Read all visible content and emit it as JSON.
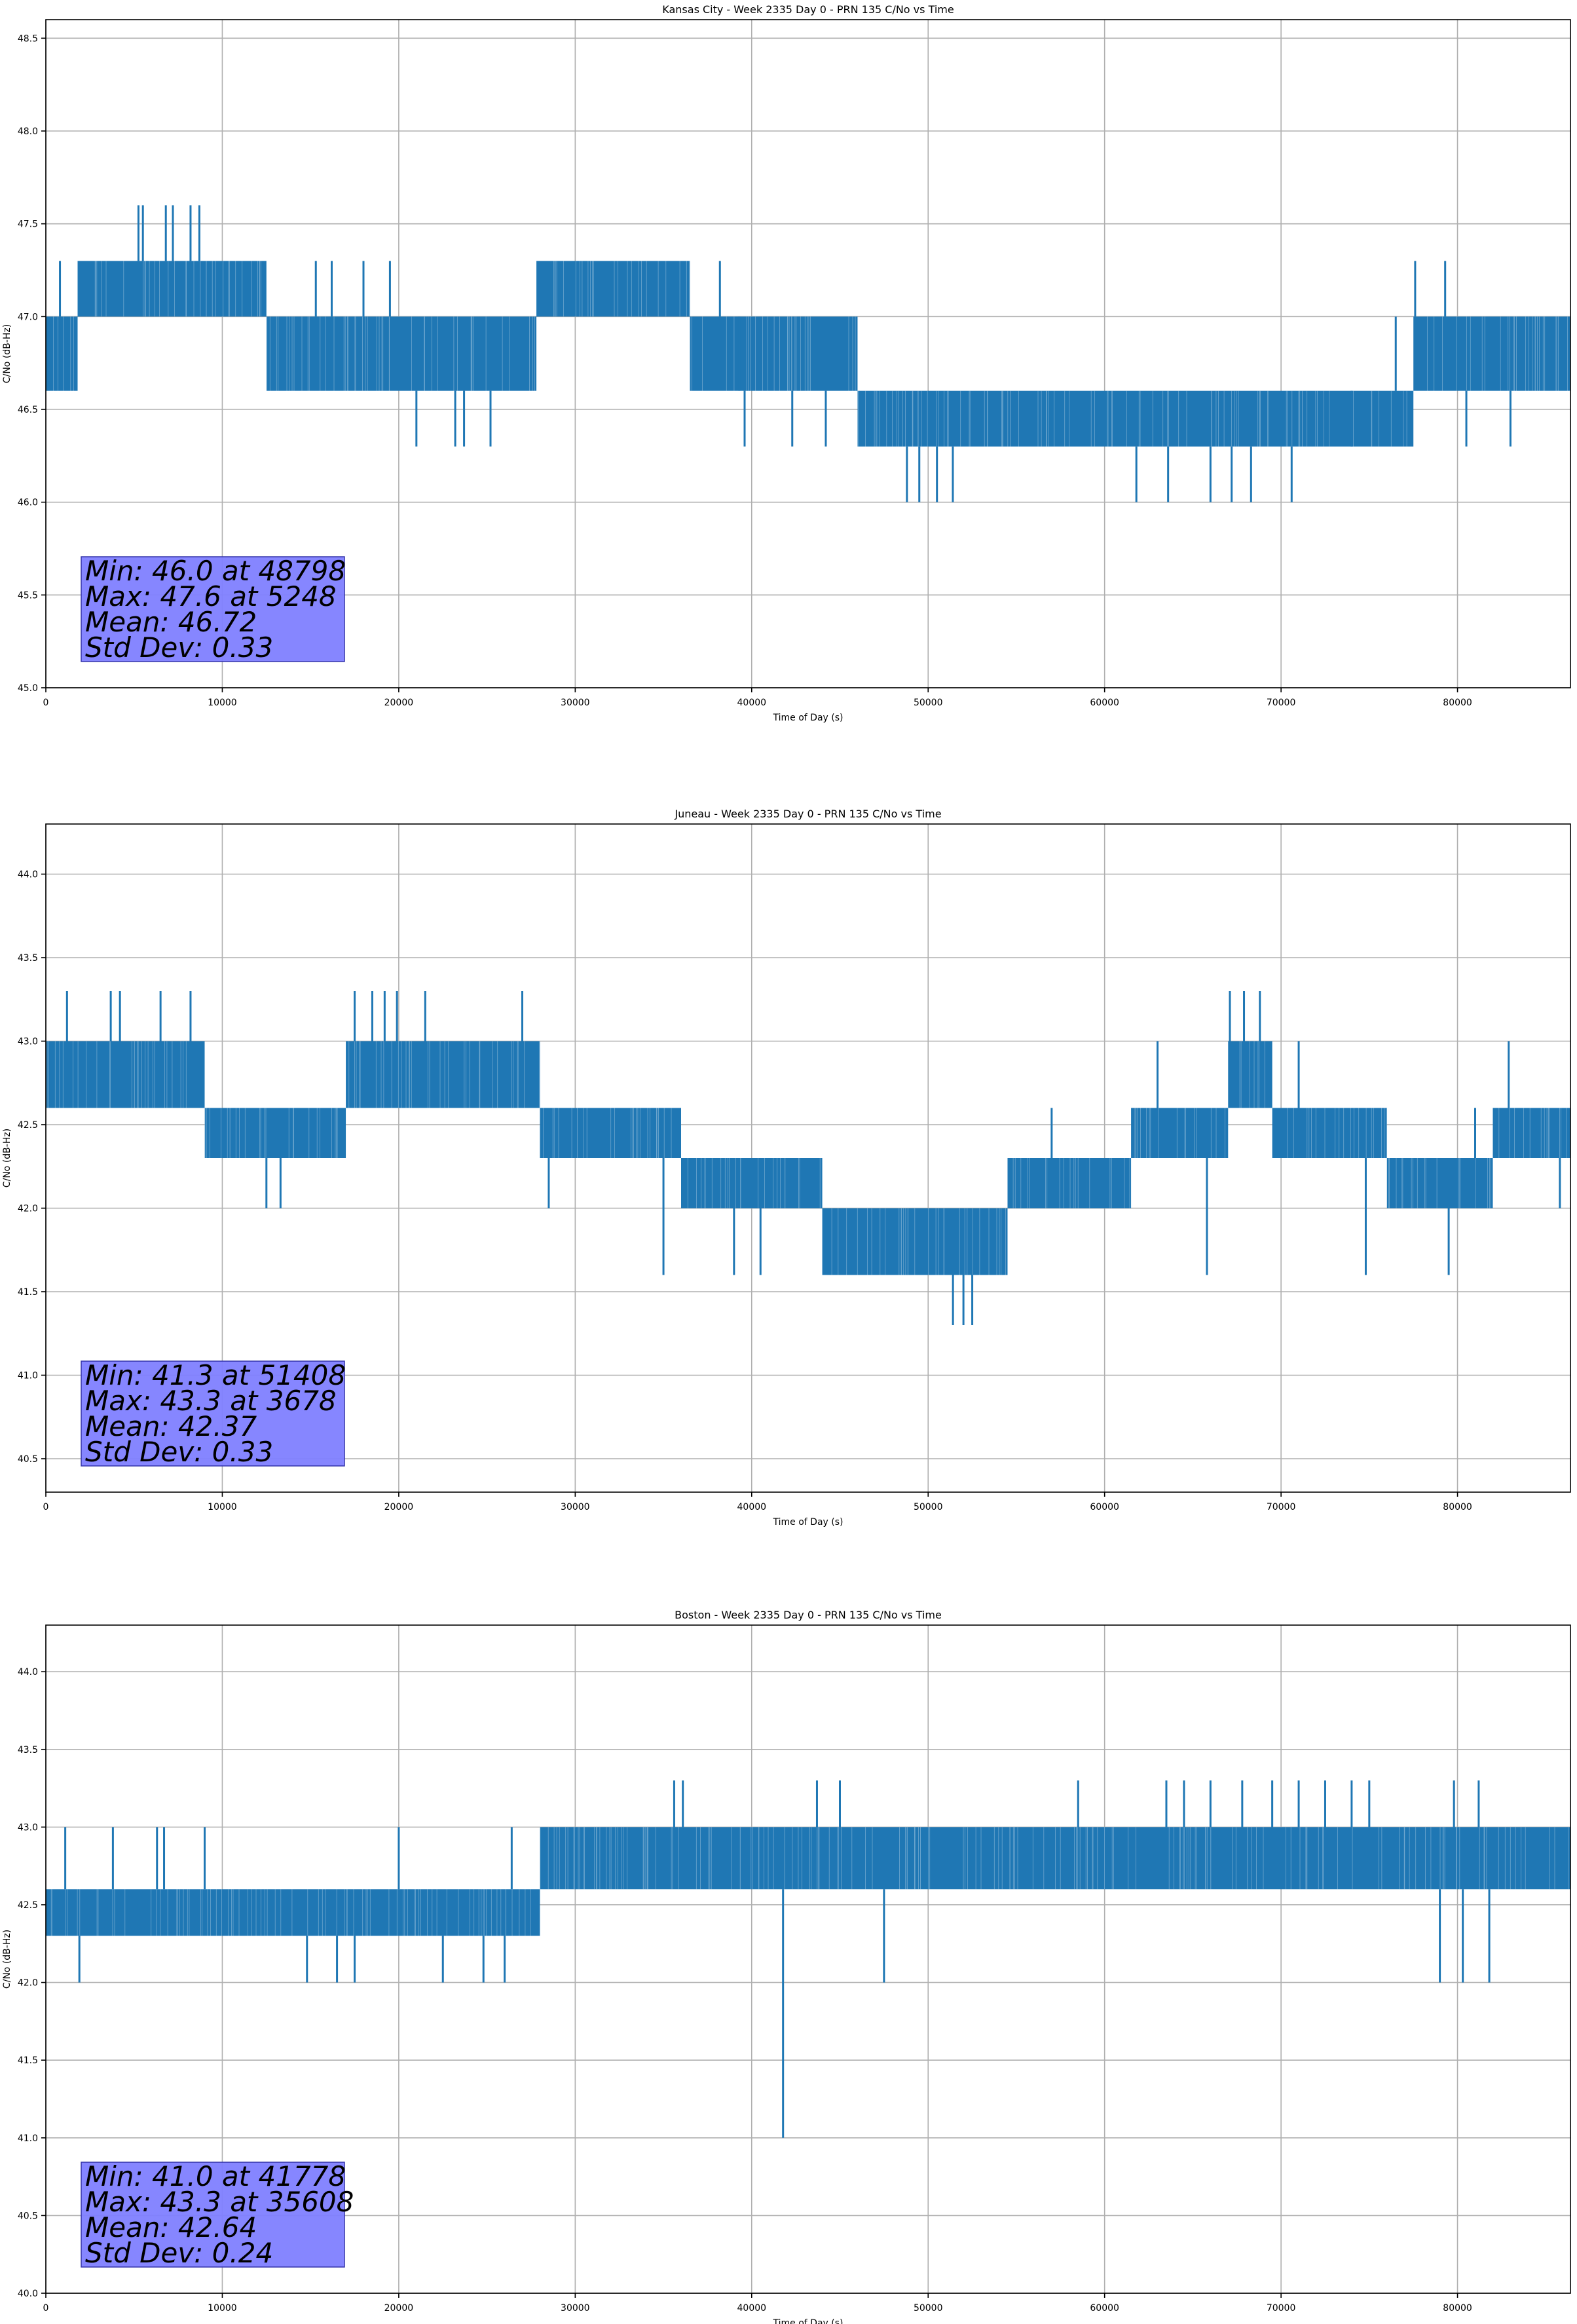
{
  "chart_data": [
    {
      "type": "line",
      "title": "Kansas City - Week 2335 Day 0 - PRN 135 C/No vs Time",
      "xlabel": "Time of Day (s)",
      "ylabel": "C/No (dB-Hz)",
      "xlim": [
        0,
        86400
      ],
      "ylim": [
        45.0,
        48.6
      ],
      "xticks": [
        0,
        10000,
        20000,
        30000,
        40000,
        50000,
        60000,
        70000,
        80000
      ],
      "yticks": [
        45.0,
        45.5,
        46.0,
        46.5,
        47.0,
        47.5,
        48.0,
        48.5
      ],
      "grid": true,
      "color": "#1f77b4",
      "series": [
        {
          "segments": [
            {
              "x0": 0,
              "x1": 1800,
              "lo": 46.6,
              "hi": 47.0
            },
            {
              "x0": 1800,
              "x1": 12500,
              "lo": 47.0,
              "hi": 47.3
            },
            {
              "x0": 12500,
              "x1": 27800,
              "lo": 46.6,
              "hi": 47.0
            },
            {
              "x0": 27800,
              "x1": 36500,
              "lo": 47.0,
              "hi": 47.3
            },
            {
              "x0": 36500,
              "x1": 46000,
              "lo": 46.6,
              "hi": 47.0
            },
            {
              "x0": 46000,
              "x1": 77500,
              "lo": 46.3,
              "hi": 46.6
            },
            {
              "x0": 77500,
              "x1": 86400,
              "lo": 46.6,
              "hi": 47.0
            }
          ],
          "spikes": [
            {
              "x": 800,
              "y": 47.3
            },
            {
              "x": 2500,
              "y": 47.3
            },
            {
              "x": 5248,
              "y": 47.6
            },
            {
              "x": 5500,
              "y": 47.6
            },
            {
              "x": 6800,
              "y": 47.6
            },
            {
              "x": 7200,
              "y": 47.6
            },
            {
              "x": 8200,
              "y": 47.6
            },
            {
              "x": 8700,
              "y": 47.6
            },
            {
              "x": 15300,
              "y": 47.3
            },
            {
              "x": 16200,
              "y": 47.3
            },
            {
              "x": 18000,
              "y": 47.3
            },
            {
              "x": 19500,
              "y": 47.3
            },
            {
              "x": 21000,
              "y": 46.3
            },
            {
              "x": 23200,
              "y": 46.3
            },
            {
              "x": 23700,
              "y": 46.3
            },
            {
              "x": 25200,
              "y": 46.3
            },
            {
              "x": 38200,
              "y": 47.3
            },
            {
              "x": 39300,
              "y": 46.6
            },
            {
              "x": 39600,
              "y": 46.3
            },
            {
              "x": 42300,
              "y": 46.3
            },
            {
              "x": 44200,
              "y": 46.3
            },
            {
              "x": 48798,
              "y": 46.0
            },
            {
              "x": 49500,
              "y": 46.0
            },
            {
              "x": 50500,
              "y": 46.0
            },
            {
              "x": 51400,
              "y": 46.0
            },
            {
              "x": 53000,
              "y": 46.6
            },
            {
              "x": 57700,
              "y": 46.6
            },
            {
              "x": 61800,
              "y": 46.0
            },
            {
              "x": 63600,
              "y": 46.0
            },
            {
              "x": 66000,
              "y": 46.0
            },
            {
              "x": 67200,
              "y": 46.0
            },
            {
              "x": 68300,
              "y": 46.0
            },
            {
              "x": 70600,
              "y": 46.0
            },
            {
              "x": 72000,
              "y": 46.6
            },
            {
              "x": 74000,
              "y": 46.3
            },
            {
              "x": 76500,
              "y": 47.0
            },
            {
              "x": 77600,
              "y": 47.3
            },
            {
              "x": 79300,
              "y": 47.3
            },
            {
              "x": 80500,
              "y": 46.3
            },
            {
              "x": 83000,
              "y": 46.3
            }
          ]
        }
      ],
      "annotation": [
        "Min: 46.0 at 48798",
        "Max: 47.6 at 5248",
        "Mean: 46.72",
        "Std Dev: 0.33"
      ]
    },
    {
      "type": "line",
      "title": "Juneau - Week 2335 Day 0 - PRN 135 C/No vs Time",
      "xlabel": "Time of Day (s)",
      "ylabel": "C/No (dB-Hz)",
      "xlim": [
        0,
        86400
      ],
      "ylim": [
        40.3,
        44.3
      ],
      "xticks": [
        0,
        10000,
        20000,
        30000,
        40000,
        50000,
        60000,
        70000,
        80000
      ],
      "yticks": [
        40.5,
        41.0,
        41.5,
        42.0,
        42.5,
        43.0,
        43.5,
        44.0
      ],
      "grid": true,
      "color": "#1f77b4",
      "series": [
        {
          "segments": [
            {
              "x0": 0,
              "x1": 9000,
              "lo": 42.6,
              "hi": 43.0
            },
            {
              "x0": 9000,
              "x1": 17000,
              "lo": 42.3,
              "hi": 42.6
            },
            {
              "x0": 17000,
              "x1": 28000,
              "lo": 42.6,
              "hi": 43.0
            },
            {
              "x0": 28000,
              "x1": 36000,
              "lo": 42.3,
              "hi": 42.6
            },
            {
              "x0": 36000,
              "x1": 44000,
              "lo": 42.0,
              "hi": 42.3
            },
            {
              "x0": 44000,
              "x1": 54500,
              "lo": 41.6,
              "hi": 42.0
            },
            {
              "x0": 54500,
              "x1": 61500,
              "lo": 42.0,
              "hi": 42.3
            },
            {
              "x0": 61500,
              "x1": 67000,
              "lo": 42.3,
              "hi": 42.6
            },
            {
              "x0": 67000,
              "x1": 69500,
              "lo": 42.6,
              "hi": 43.0
            },
            {
              "x0": 69500,
              "x1": 76000,
              "lo": 42.3,
              "hi": 42.6
            },
            {
              "x0": 76000,
              "x1": 82000,
              "lo": 42.0,
              "hi": 42.3
            },
            {
              "x0": 82000,
              "x1": 86400,
              "lo": 42.3,
              "hi": 42.6
            }
          ],
          "spikes": [
            {
              "x": 1200,
              "y": 43.3
            },
            {
              "x": 3678,
              "y": 43.3
            },
            {
              "x": 4200,
              "y": 43.3
            },
            {
              "x": 6500,
              "y": 43.3
            },
            {
              "x": 8200,
              "y": 43.3
            },
            {
              "x": 12500,
              "y": 42.0
            },
            {
              "x": 13300,
              "y": 42.0
            },
            {
              "x": 17500,
              "y": 43.3
            },
            {
              "x": 18500,
              "y": 43.3
            },
            {
              "x": 19200,
              "y": 43.3
            },
            {
              "x": 19900,
              "y": 43.3
            },
            {
              "x": 21500,
              "y": 43.3
            },
            {
              "x": 27000,
              "y": 43.3
            },
            {
              "x": 28500,
              "y": 42.0
            },
            {
              "x": 35000,
              "y": 41.6
            },
            {
              "x": 39000,
              "y": 41.6
            },
            {
              "x": 40500,
              "y": 41.6
            },
            {
              "x": 51408,
              "y": 41.3
            },
            {
              "x": 52000,
              "y": 41.3
            },
            {
              "x": 52500,
              "y": 41.3
            },
            {
              "x": 57000,
              "y": 42.6
            },
            {
              "x": 59000,
              "y": 42.0
            },
            {
              "x": 63000,
              "y": 43.0
            },
            {
              "x": 65800,
              "y": 41.6
            },
            {
              "x": 67100,
              "y": 43.3
            },
            {
              "x": 67900,
              "y": 43.3
            },
            {
              "x": 68800,
              "y": 43.3
            },
            {
              "x": 71000,
              "y": 43.0
            },
            {
              "x": 74800,
              "y": 41.6
            },
            {
              "x": 79500,
              "y": 41.6
            },
            {
              "x": 81000,
              "y": 42.6
            },
            {
              "x": 82900,
              "y": 43.0
            },
            {
              "x": 85800,
              "y": 42.0
            }
          ]
        }
      ],
      "annotation": [
        "Min: 41.3 at 51408",
        "Max: 43.3 at 3678",
        "Mean: 42.37",
        "Std Dev: 0.33"
      ]
    },
    {
      "type": "line",
      "title": "Boston - Week 2335 Day 0 - PRN 135 C/No vs Time",
      "xlabel": "Time of Day (s)",
      "ylabel": "C/No (dB-Hz)",
      "xlim": [
        0,
        86400
      ],
      "ylim": [
        40.0,
        44.3
      ],
      "xticks": [
        0,
        10000,
        20000,
        30000,
        40000,
        50000,
        60000,
        70000,
        80000
      ],
      "yticks": [
        40.0,
        40.5,
        41.0,
        41.5,
        42.0,
        42.5,
        43.0,
        43.5,
        44.0
      ],
      "grid": true,
      "color": "#1f77b4",
      "series": [
        {
          "segments": [
            {
              "x0": 0,
              "x1": 28000,
              "lo": 42.3,
              "hi": 42.6
            },
            {
              "x0": 28000,
              "x1": 86400,
              "lo": 42.6,
              "hi": 43.0
            }
          ],
          "spikes": [
            {
              "x": 1100,
              "y": 43.0
            },
            {
              "x": 1900,
              "y": 42.0
            },
            {
              "x": 3800,
              "y": 43.0
            },
            {
              "x": 6300,
              "y": 43.0
            },
            {
              "x": 6700,
              "y": 43.0
            },
            {
              "x": 9000,
              "y": 43.0
            },
            {
              "x": 14800,
              "y": 42.0
            },
            {
              "x": 16500,
              "y": 42.0
            },
            {
              "x": 17500,
              "y": 42.0
            },
            {
              "x": 20000,
              "y": 43.0
            },
            {
              "x": 22500,
              "y": 42.0
            },
            {
              "x": 24800,
              "y": 42.0
            },
            {
              "x": 26000,
              "y": 42.0
            },
            {
              "x": 26400,
              "y": 43.0
            },
            {
              "x": 35608,
              "y": 43.3
            },
            {
              "x": 36100,
              "y": 43.3
            },
            {
              "x": 41778,
              "y": 41.0
            },
            {
              "x": 43700,
              "y": 43.3
            },
            {
              "x": 45000,
              "y": 43.3
            },
            {
              "x": 47500,
              "y": 42.0
            },
            {
              "x": 58500,
              "y": 43.3
            },
            {
              "x": 63500,
              "y": 43.3
            },
            {
              "x": 64500,
              "y": 43.3
            },
            {
              "x": 66000,
              "y": 43.3
            },
            {
              "x": 67800,
              "y": 43.3
            },
            {
              "x": 69500,
              "y": 43.3
            },
            {
              "x": 71000,
              "y": 43.3
            },
            {
              "x": 72500,
              "y": 43.3
            },
            {
              "x": 74000,
              "y": 43.3
            },
            {
              "x": 75000,
              "y": 43.3
            },
            {
              "x": 79000,
              "y": 42.0
            },
            {
              "x": 79800,
              "y": 43.3
            },
            {
              "x": 80300,
              "y": 42.0
            },
            {
              "x": 81200,
              "y": 43.3
            },
            {
              "x": 81800,
              "y": 42.0
            },
            {
              "x": 84000,
              "y": 43.0
            }
          ]
        }
      ],
      "annotation": [
        "Min: 41.0 at 41778",
        "Max: 43.3 at 35608",
        "Mean: 42.64",
        "Std Dev: 0.24"
      ]
    }
  ]
}
